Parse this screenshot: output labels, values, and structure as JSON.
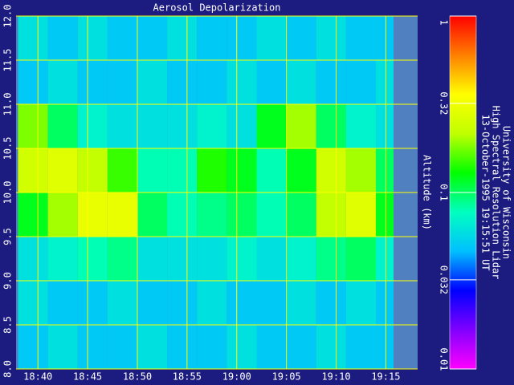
{
  "chart_data": {
    "type": "heatmap",
    "title": "Aerosol Depolarization",
    "y_label": "Altitude (km)",
    "annotations": [
      "University of Wisconsin",
      "High Spectral Resolution Lidar",
      "13-October-1995 19:15:51 UT"
    ],
    "x_edges": [
      1118,
      1121,
      1124,
      1127,
      1130,
      1133,
      1136,
      1139,
      1142,
      1145,
      1148,
      1151,
      1154,
      1157
    ],
    "y_edges": [
      8,
      8.5,
      9,
      9.5,
      10,
      10.5,
      11,
      11.5,
      12
    ],
    "z": [
      [
        0.05,
        0.06,
        0.05,
        0.05,
        0.06,
        0.05,
        0.05,
        0.06,
        0.05,
        0.05,
        0.06,
        0.05,
        0.05
      ],
      [
        0.06,
        0.05,
        0.05,
        0.06,
        0.05,
        0.05,
        0.06,
        0.05,
        0.05,
        0.06,
        0.05,
        0.06,
        0.05
      ],
      [
        0.06,
        0.07,
        0.08,
        0.09,
        0.06,
        0.06,
        0.06,
        0.07,
        0.06,
        0.07,
        0.09,
        0.1,
        0.07
      ],
      [
        0.12,
        0.2,
        0.3,
        0.3,
        0.1,
        0.08,
        0.09,
        0.1,
        0.08,
        0.1,
        0.22,
        0.28,
        0.12
      ],
      [
        0.25,
        0.28,
        0.22,
        0.15,
        0.08,
        0.08,
        0.14,
        0.12,
        0.08,
        0.12,
        0.25,
        0.2,
        0.1
      ],
      [
        0.18,
        0.1,
        0.07,
        0.06,
        0.06,
        0.06,
        0.07,
        0.06,
        0.12,
        0.2,
        0.1,
        0.07,
        0.06
      ],
      [
        0.05,
        0.06,
        0.05,
        0.05,
        0.06,
        0.05,
        0.05,
        0.06,
        0.05,
        0.06,
        0.05,
        0.05,
        0.06
      ],
      [
        0.06,
        0.05,
        0.06,
        0.05,
        0.05,
        0.06,
        0.05,
        0.05,
        0.06,
        0.05,
        0.06,
        0.05,
        0.05
      ]
    ],
    "xlim": [
      1117.8,
      1158.2
    ],
    "ylim": [
      8,
      12
    ],
    "xticks": [
      {
        "value": 1120,
        "label": "18:40"
      },
      {
        "value": 1125,
        "label": "18:45"
      },
      {
        "value": 1130,
        "label": "18:50"
      },
      {
        "value": 1135,
        "label": "18:55"
      },
      {
        "value": 1140,
        "label": "19:00"
      },
      {
        "value": 1145,
        "label": "19:05"
      },
      {
        "value": 1150,
        "label": "19:10"
      },
      {
        "value": 1155,
        "label": "19:15"
      }
    ],
    "yticks": [
      {
        "value": 8,
        "label": "8.0"
      },
      8.5,
      {
        "value": 9,
        "label": "9.0"
      },
      9.5,
      {
        "value": 10,
        "label": "10.0"
      },
      10.5,
      {
        "value": 11,
        "label": "11.0"
      },
      11.5,
      {
        "value": 12,
        "label": "12.0"
      }
    ],
    "grid": true,
    "grid_color": "#ffff00",
    "colorbar_log": true,
    "colorbar_lim": [
      0.01,
      1
    ],
    "colorbar_ticks": [
      1,
      0.32,
      0.1,
      0.032,
      0.01
    ],
    "colorscale": [
      "#ff00ff",
      "#8000ff",
      "#0000ff",
      "#00c0ff",
      "#00ffc0",
      "#00ff00",
      "#c0ff00",
      "#ffff00",
      "#ff8000",
      "#ff0000"
    ]
  }
}
